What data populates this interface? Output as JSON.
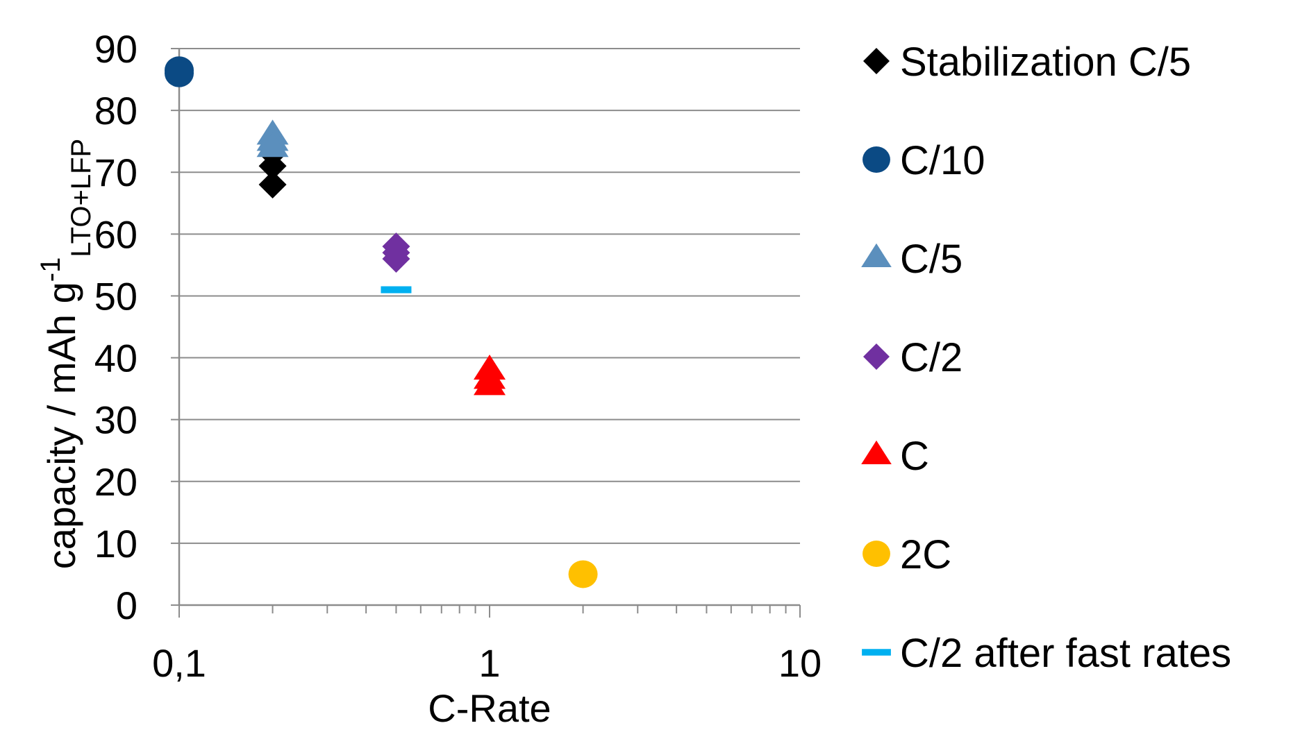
{
  "chart_data": {
    "type": "scatter",
    "xlabel": "C-Rate",
    "ylabel": "capacity / mAh g",
    "ylabel_sup": "-1",
    "ylabel_sub": "LTO+LFP",
    "xscale": "log",
    "xlim": [
      0.1,
      10
    ],
    "ylim": [
      0,
      90
    ],
    "x_ticks": [
      0.1,
      1,
      10
    ],
    "x_tick_labels": [
      "0,1",
      "1",
      "10"
    ],
    "y_ticks": [
      0,
      10,
      20,
      30,
      40,
      50,
      60,
      70,
      80,
      90
    ],
    "y_tick_labels": [
      "0",
      "10",
      "20",
      "30",
      "40",
      "50",
      "60",
      "70",
      "80",
      "90"
    ],
    "grid": "horizontal",
    "legend_position": "right",
    "series": [
      {
        "name": "Stabilization C/5",
        "marker": "diamond",
        "color": "#000000",
        "points": [
          {
            "x": 0.2,
            "y": 75
          },
          {
            "x": 0.2,
            "y": 73
          },
          {
            "x": 0.2,
            "y": 71
          },
          {
            "x": 0.2,
            "y": 68
          }
        ]
      },
      {
        "name": "C/10",
        "marker": "circle",
        "color": "#0b4a84",
        "points": [
          {
            "x": 0.1,
            "y": 86.5
          },
          {
            "x": 0.1,
            "y": 86
          }
        ]
      },
      {
        "name": "C/5",
        "marker": "triangle",
        "color": "#5b8fbd",
        "points": [
          {
            "x": 0.2,
            "y": 76
          },
          {
            "x": 0.2,
            "y": 75
          },
          {
            "x": 0.2,
            "y": 74
          }
        ]
      },
      {
        "name": "C/2",
        "marker": "diamond",
        "color": "#7030a0",
        "points": [
          {
            "x": 0.5,
            "y": 58
          },
          {
            "x": 0.5,
            "y": 57
          },
          {
            "x": 0.5,
            "y": 56
          }
        ]
      },
      {
        "name": "C",
        "marker": "triangle",
        "color": "#ff0000",
        "points": [
          {
            "x": 1,
            "y": 38
          },
          {
            "x": 1,
            "y": 36.5
          },
          {
            "x": 1,
            "y": 35.5
          }
        ]
      },
      {
        "name": "2C",
        "marker": "circle",
        "color": "#ffc000",
        "points": [
          {
            "x": 2,
            "y": 5
          }
        ]
      },
      {
        "name": "C/2 after fast rates",
        "marker": "dash",
        "color": "#00b0f0",
        "points": [
          {
            "x": 0.5,
            "y": 51
          }
        ]
      }
    ]
  }
}
